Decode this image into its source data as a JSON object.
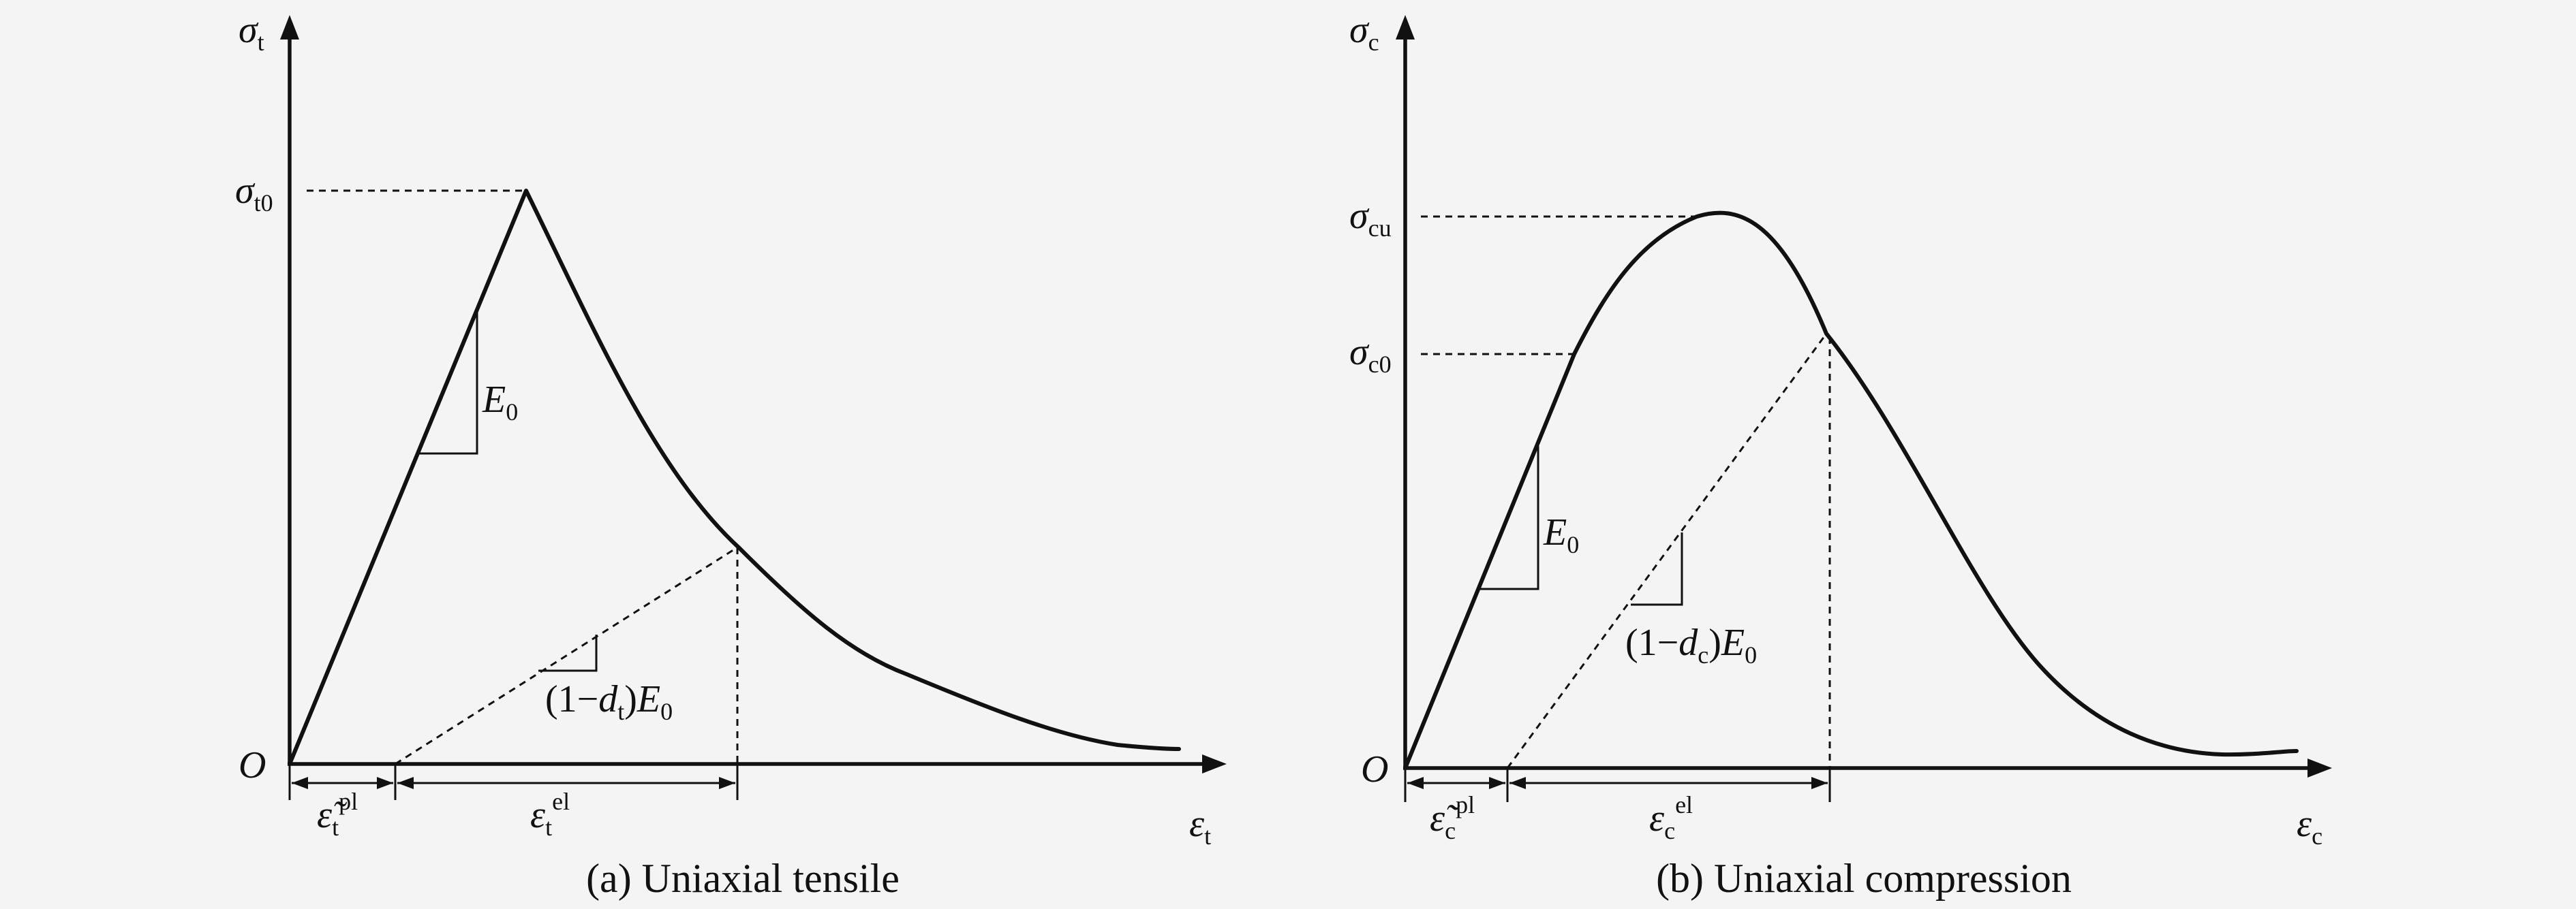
{
  "panels": [
    {
      "id": "tensile",
      "caption": "(a) Uniaxial tensile",
      "y_axis_symbol": "σ",
      "y_axis_sub": "t",
      "x_axis_symbol": "ε",
      "x_axis_sub": "t",
      "peak_symbol": "σ",
      "peak_sub": "t0",
      "origin": "O",
      "slope_label": "E",
      "slope_sub": "0",
      "unload_label_pre": "(1−",
      "unload_label_d": "d",
      "unload_label_dsub": "t",
      "unload_label_post": ")",
      "unload_label_E": "E",
      "unload_label_Esub": "0",
      "plastic_symbol": "ε̃",
      "plastic_sub": "t",
      "plastic_sup": "pl",
      "elastic_symbol": "ε",
      "elastic_sub": "t",
      "elastic_sup": "el"
    },
    {
      "id": "compression",
      "caption": "(b) Uniaxial compression",
      "y_axis_symbol": "σ",
      "y_axis_sub": "c",
      "x_axis_symbol": "ε",
      "x_axis_sub": "c",
      "peak_symbol": "σ",
      "peak_sub": "cu",
      "yield_symbol": "σ",
      "yield_sub": "c0",
      "origin": "O",
      "slope_label": "E",
      "slope_sub": "0",
      "unload_label_pre": "(1−",
      "unload_label_d": "d",
      "unload_label_dsub": "c",
      "unload_label_post": ")",
      "unload_label_E": "E",
      "unload_label_Esub": "0",
      "plastic_symbol": "ε̃",
      "plastic_sub": "c",
      "plastic_sup": "pl",
      "elastic_symbol": "ε",
      "elastic_sub": "c",
      "elastic_sup": "el"
    }
  ]
}
